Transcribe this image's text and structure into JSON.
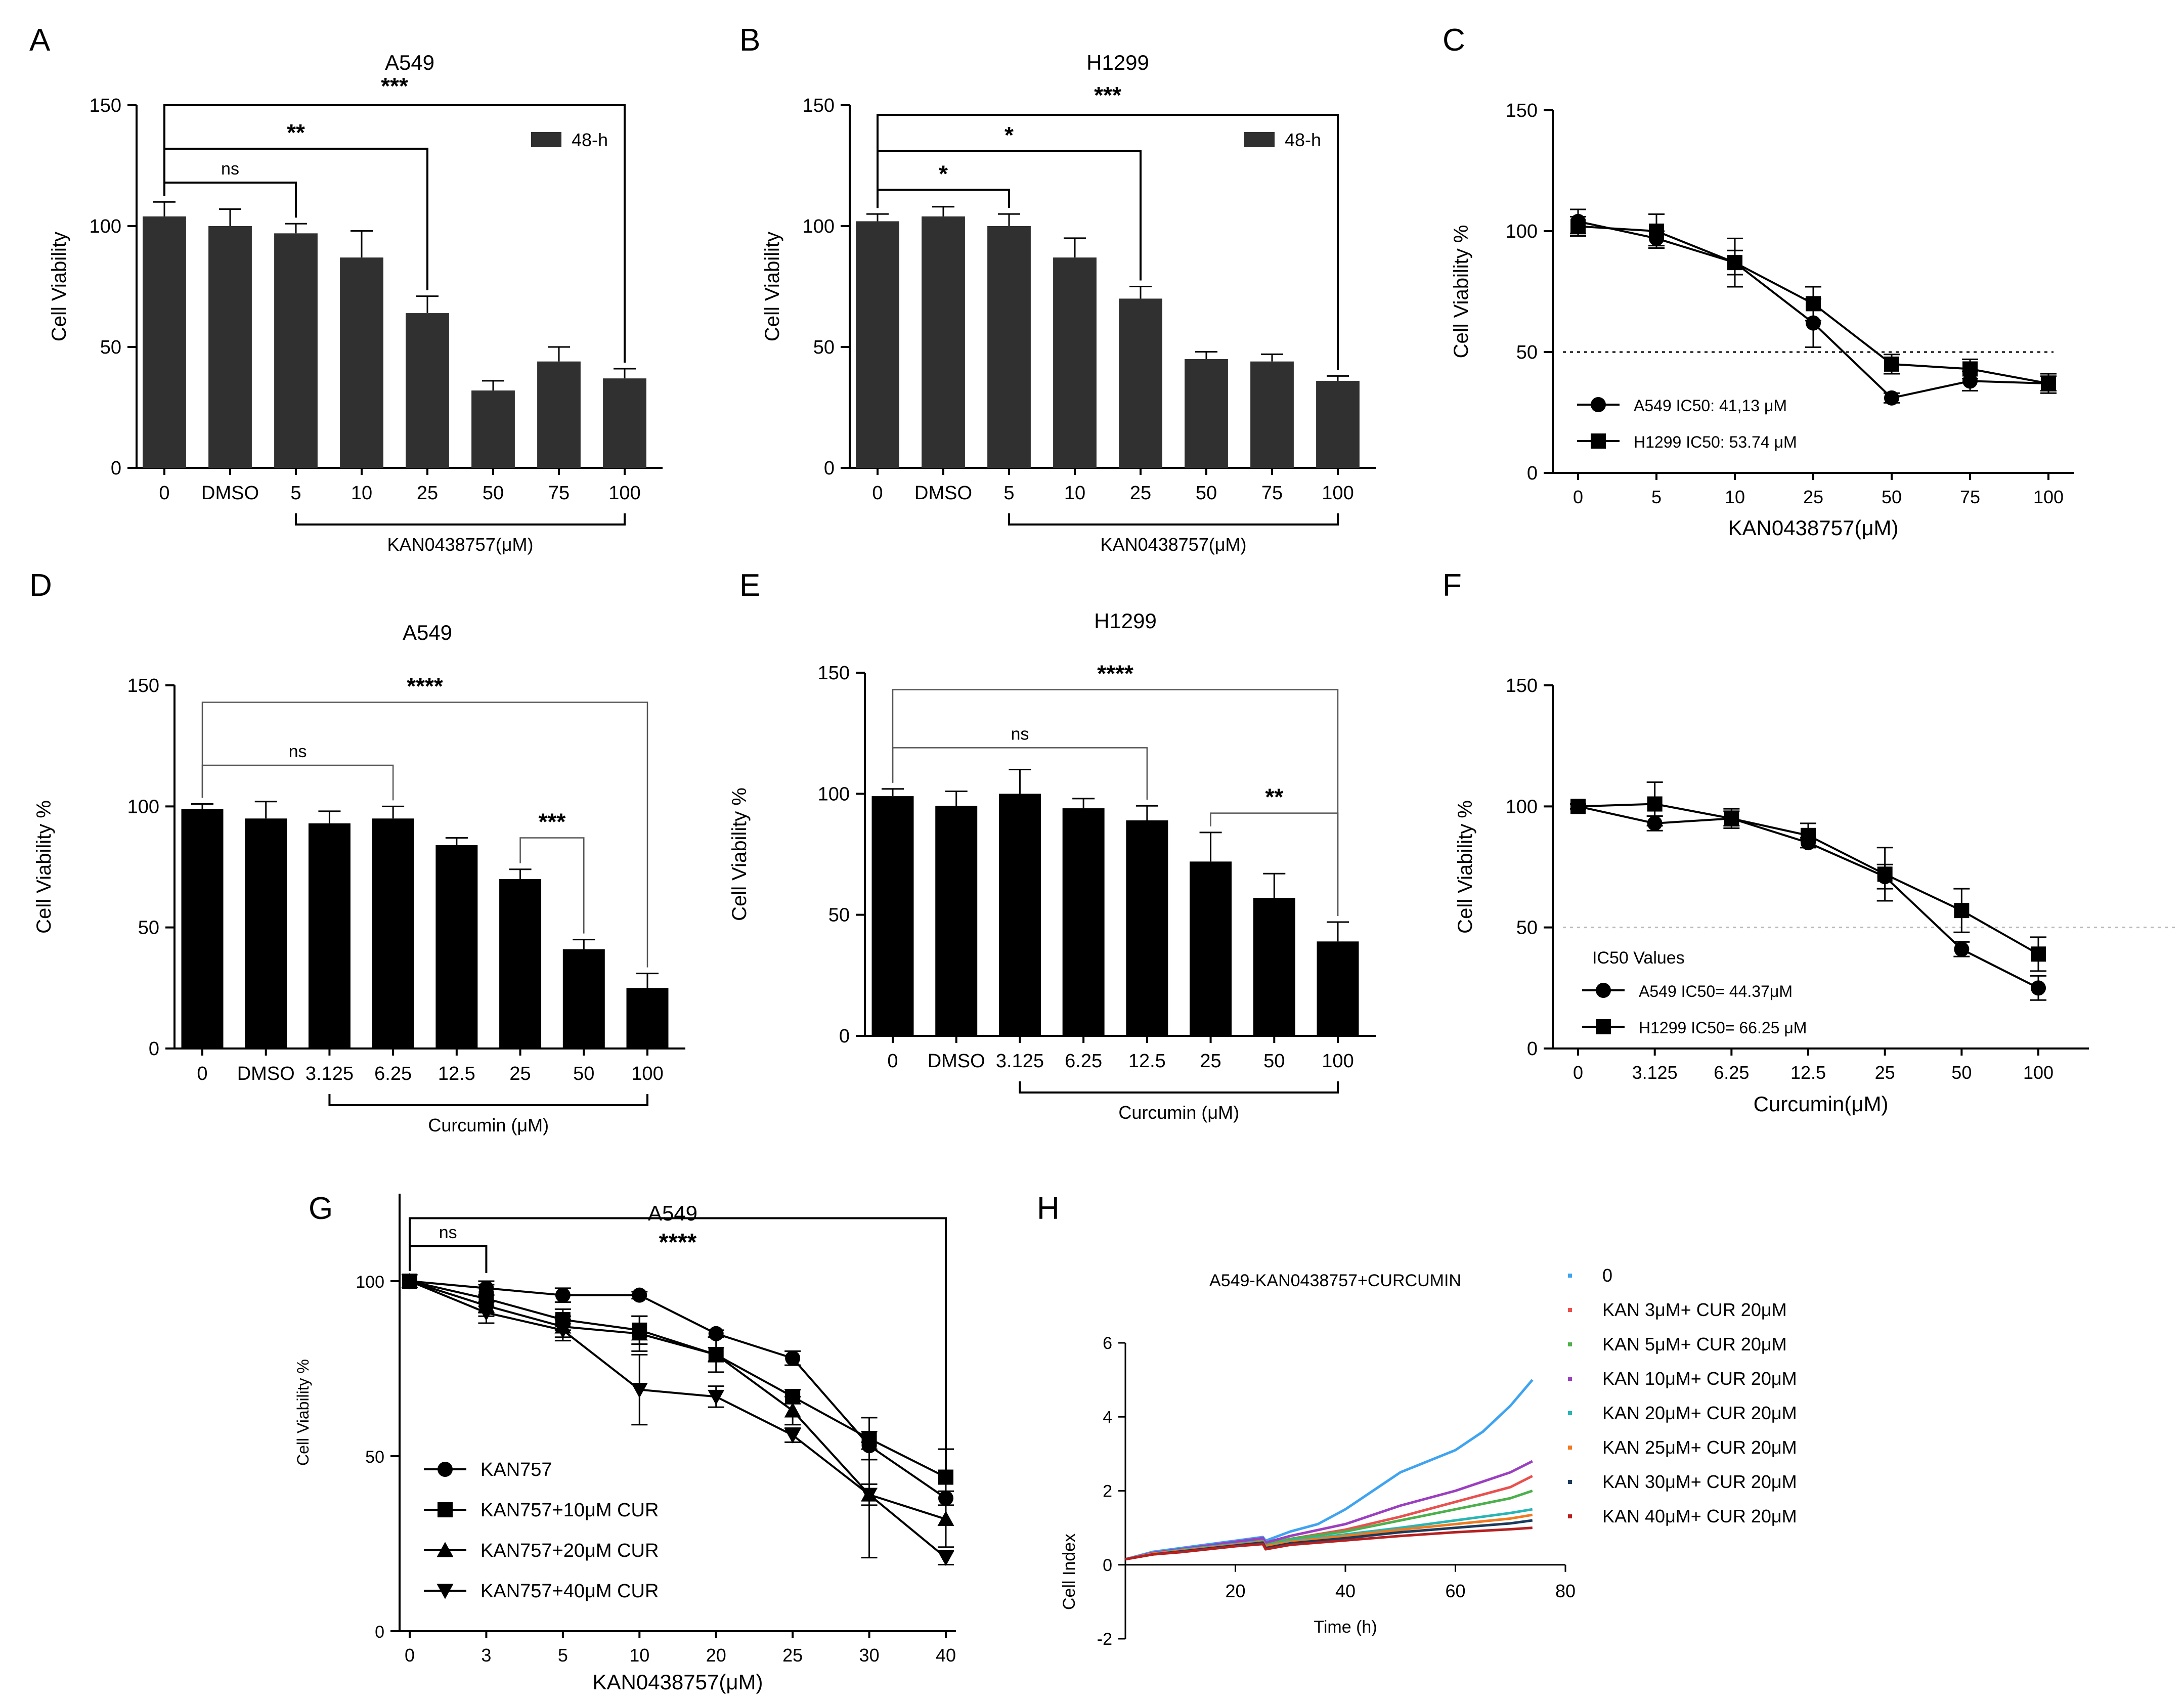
{
  "chart_data": [
    {
      "id": "A",
      "type": "bar",
      "panel_letter": "A",
      "title": "A549",
      "ylabel": "Cell Viability",
      "ylim": [
        0,
        150
      ],
      "yticks": [
        "0",
        "50",
        "100",
        "150"
      ],
      "categories": [
        "0",
        "DMSO",
        "5",
        "10",
        "25",
        "50",
        "75",
        "100"
      ],
      "values": [
        104,
        100,
        97,
        87,
        64,
        32,
        44,
        37
      ],
      "errors": [
        6,
        7,
        4,
        11,
        7,
        4,
        6,
        4
      ],
      "bar_color": "#303030",
      "legend": {
        "label": "48-h",
        "position": "top-right"
      },
      "group_label": "KAN0438757(μM)",
      "group_from": 2,
      "group_to": 7,
      "brackets": [
        {
          "from": 0,
          "to": 2,
          "label": "ns",
          "y": 118
        },
        {
          "from": 0,
          "to": 4,
          "label": "**",
          "y": 132
        },
        {
          "from": 0,
          "to": 7,
          "label": "***",
          "y": 150
        }
      ]
    },
    {
      "id": "B",
      "type": "bar",
      "panel_letter": "B",
      "title": "H1299",
      "ylabel": "Cell Viability",
      "ylim": [
        0,
        150
      ],
      "yticks": [
        "0",
        "50",
        "100",
        "150"
      ],
      "categories": [
        "0",
        "DMSO",
        "5",
        "10",
        "25",
        "50",
        "75",
        "100"
      ],
      "values": [
        102,
        104,
        100,
        87,
        70,
        45,
        44,
        36
      ],
      "errors": [
        3,
        4,
        5,
        8,
        5,
        3,
        3,
        2
      ],
      "bar_color": "#303030",
      "legend": {
        "label": "48-h",
        "position": "top-right"
      },
      "group_label": "KAN0438757(μM)",
      "group_from": 2,
      "group_to": 7,
      "brackets": [
        {
          "from": 0,
          "to": 2,
          "label": "*",
          "y": 115
        },
        {
          "from": 0,
          "to": 4,
          "label": "*",
          "y": 131
        },
        {
          "from": 0,
          "to": 7,
          "label": "***",
          "y": 146
        }
      ]
    },
    {
      "id": "C",
      "type": "line",
      "panel_letter": "C",
      "title": "",
      "ylabel": "Cell Viability %",
      "xlabel": "KAN0438757(μM)",
      "ylim": [
        0,
        150
      ],
      "yticks": [
        "0",
        "50",
        "100",
        "150"
      ],
      "categories": [
        "0",
        "5",
        "10",
        "25",
        "50",
        "75",
        "100"
      ],
      "reference_line": 50,
      "series": [
        {
          "name": "A549 IC50: 41,13 μM",
          "marker": "circle",
          "values": [
            104,
            97,
            87,
            62,
            31,
            38,
            37
          ],
          "errors": [
            5,
            3,
            10,
            10,
            2,
            4,
            4
          ]
        },
        {
          "name": "H1299 IC50: 53.74 μM",
          "marker": "square",
          "values": [
            102,
            100,
            87,
            70,
            45,
            43,
            37
          ],
          "errors": [
            4,
            7,
            5,
            7,
            4,
            4,
            3
          ]
        }
      ]
    },
    {
      "id": "D",
      "type": "bar",
      "panel_letter": "D",
      "title": "A549",
      "ylabel": "Cell Viability %",
      "ylim": [
        0,
        150
      ],
      "yticks": [
        "0",
        "50",
        "100",
        "150"
      ],
      "categories": [
        "0",
        "DMSO",
        "3.125",
        "6.25",
        "12.5",
        "25",
        "50",
        "100"
      ],
      "values": [
        99,
        95,
        93,
        95,
        84,
        70,
        41,
        25
      ],
      "errors": [
        2,
        7,
        5,
        5,
        3,
        4,
        4,
        6
      ],
      "bar_color": "#000000",
      "group_label": "Curcumin (μM)",
      "group_from": 2,
      "group_to": 7,
      "brackets": [
        {
          "from": 0,
          "to": 3,
          "label": "ns",
          "y": 117
        },
        {
          "from": 5,
          "to": 6,
          "label": "***",
          "y": 87
        },
        {
          "from": 0,
          "to": 7,
          "label": "****",
          "y": 143
        }
      ]
    },
    {
      "id": "E",
      "type": "bar",
      "panel_letter": "E",
      "title": "H1299",
      "ylabel": "Cell Viability %",
      "ylim": [
        0,
        150
      ],
      "yticks": [
        "0",
        "50",
        "100",
        "150"
      ],
      "categories": [
        "0",
        "DMSO",
        "3.125",
        "6.25",
        "12.5",
        "25",
        "50",
        "100"
      ],
      "values": [
        99,
        95,
        100,
        94,
        89,
        72,
        57,
        39
      ],
      "errors": [
        3,
        6,
        10,
        4,
        6,
        12,
        10,
        8
      ],
      "bar_color": "#000000",
      "group_label": "Curcumin (μM)",
      "group_from": 2,
      "group_to": 7,
      "brackets": [
        {
          "from": 0,
          "to": 4,
          "label": "ns",
          "y": 119
        },
        {
          "from": 5,
          "to": 7,
          "label": "**",
          "y": 92
        },
        {
          "from": 0,
          "to": 7,
          "label": "****",
          "y": 143
        }
      ]
    },
    {
      "id": "F",
      "type": "line",
      "panel_letter": "F",
      "title": "",
      "ylabel": "Cell Viability %",
      "xlabel": "Curcumin(μM)",
      "ylim": [
        0,
        150
      ],
      "yticks": [
        "0",
        "50",
        "100",
        "150"
      ],
      "categories": [
        "0",
        "3.125",
        "6.25",
        "12.5",
        "25",
        "50",
        "100"
      ],
      "reference_line": 50,
      "legend_title": "IC50 Values",
      "series": [
        {
          "name": "A549 IC50= 44.37μM",
          "marker": "circle",
          "values": [
            100,
            93,
            95,
            85,
            71,
            41,
            25
          ],
          "errors": [
            1,
            3,
            3,
            2,
            5,
            3,
            5
          ]
        },
        {
          "name": "H1299 IC50= 66.25 μM",
          "marker": "square",
          "values": [
            100,
            101,
            95,
            88,
            72,
            57,
            39
          ],
          "errors": [
            1,
            9,
            4,
            5,
            11,
            9,
            7
          ]
        }
      ]
    },
    {
      "id": "G",
      "type": "line",
      "panel_letter": "G",
      "title": "A549",
      "ylabel": "Cell Viability %",
      "xlabel": "KAN0438757(μM)",
      "ylim": [
        0,
        125
      ],
      "yticks": [
        "0",
        "50",
        "100"
      ],
      "categories": [
        "0",
        "3",
        "5",
        "10",
        "20",
        "25",
        "30",
        "40"
      ],
      "brackets": [
        {
          "from": 0,
          "to": 1,
          "label": "ns",
          "y": 110
        },
        {
          "from": 0,
          "to": 7,
          "label": "****",
          "y": 118
        }
      ],
      "series": [
        {
          "name": "KAN757",
          "marker": "circle",
          "values": [
            100,
            98,
            96,
            96,
            85,
            78,
            53,
            38
          ],
          "errors": [
            0,
            2,
            2,
            1,
            1,
            2,
            1,
            14
          ]
        },
        {
          "name": "KAN757+10μM CUR",
          "marker": "square",
          "values": [
            100,
            95,
            89,
            86,
            79,
            67,
            55,
            44
          ],
          "errors": [
            0,
            4,
            3,
            4,
            2,
            2,
            6,
            8
          ]
        },
        {
          "name": "KAN757+20μM CUR",
          "marker": "triangle-up",
          "values": [
            100,
            93,
            87,
            85,
            79,
            63,
            39,
            32
          ],
          "errors": [
            0,
            3,
            3,
            5,
            5,
            4,
            18,
            8
          ]
        },
        {
          "name": "KAN757+40μM CUR",
          "marker": "triangle-down",
          "values": [
            100,
            91,
            86,
            69,
            67,
            56,
            39,
            21
          ],
          "errors": [
            0,
            3,
            3,
            10,
            3,
            2,
            3,
            2
          ]
        }
      ]
    },
    {
      "id": "H",
      "type": "line",
      "panel_letter": "H",
      "title": "A549-KAN0438757+CURCUMIN",
      "ylabel": "Cell Index",
      "xlabel": "Time (h)",
      "xlim": [
        0,
        80
      ],
      "xticks": [
        "20",
        "40",
        "60",
        "80"
      ],
      "ylim": [
        -2,
        6
      ],
      "yticks": [
        "-2",
        "0",
        "2",
        "4",
        "6"
      ],
      "series": [
        {
          "name": "0",
          "color": "#3fa3f0",
          "x": [
            0,
            5,
            10,
            15,
            20,
            25,
            25.5,
            30,
            35,
            40,
            45,
            50,
            55,
            60,
            65,
            70,
            74
          ],
          "y": [
            0.15,
            0.35,
            0.45,
            0.55,
            0.65,
            0.75,
            0.65,
            0.9,
            1.1,
            1.5,
            2.0,
            2.5,
            2.8,
            3.1,
            3.6,
            4.3,
            5.0
          ]
        },
        {
          "name": "KAN 3μM+ CUR 20μM",
          "color": "#e8514f",
          "x": [
            0,
            5,
            10,
            15,
            20,
            25,
            25.5,
            30,
            40,
            50,
            60,
            70,
            74
          ],
          "y": [
            0.15,
            0.3,
            0.4,
            0.5,
            0.6,
            0.7,
            0.55,
            0.7,
            0.95,
            1.3,
            1.7,
            2.1,
            2.4
          ]
        },
        {
          "name": "KAN 5μM+ CUR 20μM",
          "color": "#4cb04c",
          "x": [
            0,
            5,
            10,
            15,
            20,
            25,
            25.5,
            30,
            40,
            50,
            60,
            70,
            74
          ],
          "y": [
            0.15,
            0.3,
            0.4,
            0.5,
            0.6,
            0.68,
            0.55,
            0.7,
            0.9,
            1.2,
            1.5,
            1.8,
            2.0
          ]
        },
        {
          "name": "KAN 10μM+ CUR 20μM",
          "color": "#9b3fc0",
          "x": [
            0,
            5,
            10,
            15,
            20,
            25,
            25.5,
            30,
            40,
            50,
            60,
            70,
            74
          ],
          "y": [
            0.15,
            0.32,
            0.42,
            0.52,
            0.62,
            0.72,
            0.6,
            0.78,
            1.1,
            1.6,
            2.0,
            2.5,
            2.8
          ]
        },
        {
          "name": "KAN 20μM+ CUR 20μM",
          "color": "#27b6b4",
          "x": [
            0,
            5,
            10,
            15,
            20,
            25,
            25.5,
            30,
            40,
            50,
            60,
            70,
            74
          ],
          "y": [
            0.15,
            0.3,
            0.4,
            0.48,
            0.56,
            0.64,
            0.5,
            0.65,
            0.82,
            1.0,
            1.2,
            1.4,
            1.5
          ]
        },
        {
          "name": "KAN 25μM+ CUR 20μM",
          "color": "#f07a20",
          "x": [
            0,
            5,
            10,
            15,
            20,
            25,
            25.5,
            30,
            40,
            50,
            60,
            70,
            74
          ],
          "y": [
            0.15,
            0.3,
            0.38,
            0.46,
            0.54,
            0.62,
            0.5,
            0.62,
            0.78,
            0.95,
            1.1,
            1.25,
            1.35
          ]
        },
        {
          "name": "KAN 30μM+ CUR 20μM",
          "color": "#1c3a5c",
          "x": [
            0,
            5,
            10,
            15,
            20,
            25,
            25.5,
            30,
            40,
            50,
            60,
            70,
            74
          ],
          "y": [
            0.15,
            0.28,
            0.36,
            0.44,
            0.52,
            0.6,
            0.45,
            0.58,
            0.72,
            0.88,
            1.0,
            1.12,
            1.2
          ]
        },
        {
          "name": "KAN 40μM+ CUR 20μM",
          "color": "#b52020",
          "x": [
            0,
            5,
            10,
            15,
            20,
            25,
            25.5,
            30,
            40,
            50,
            60,
            70,
            74
          ],
          "y": [
            0.15,
            0.28,
            0.34,
            0.42,
            0.5,
            0.56,
            0.42,
            0.54,
            0.66,
            0.78,
            0.88,
            0.96,
            1.0
          ]
        }
      ]
    }
  ]
}
